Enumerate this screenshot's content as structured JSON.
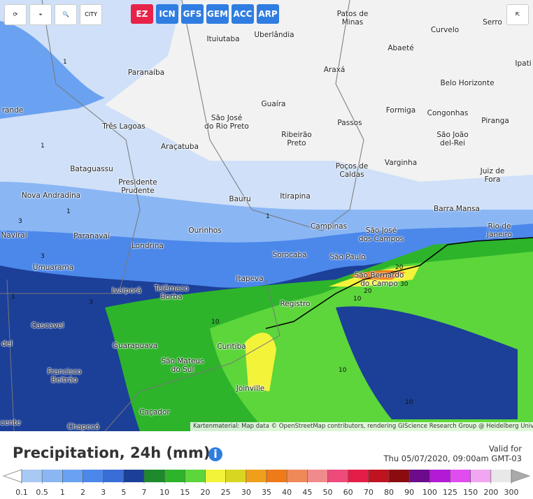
{
  "models": [
    "EZ",
    "ICN",
    "GFS",
    "GEM",
    "ACC",
    "ARP"
  ],
  "city_button": "CITY",
  "cities": [
    "Patos de\nMinas",
    "Curvelo",
    "Serro",
    "Ituiutaba",
    "Uberlândia",
    "Abaeté",
    "Paranaíba",
    "Araxá",
    "Belo Horizonte",
    "Ipati",
    "Guaíra",
    "Formiga",
    "Congonhas",
    "Piranga",
    "Três Lagoas",
    "São José\ndo Rio Preto",
    "Passos",
    "São João\ndel-Rei",
    "Araçatuba",
    "Ribeirão\nPreto",
    "Bataguassu",
    "Poços de\nCaldas",
    "Varginha",
    "Juiz de Fora",
    "Presidente\nPrudente",
    "Nova Andradina",
    "Bauru",
    "Itirapina",
    "Barra Mansa",
    "Paranavaí",
    "Ourinhos",
    "Campinas",
    "São José\ndos Campos",
    "Rio de Janeiro",
    "Naviraí",
    "Londrina",
    "Sorocaba",
    "São Paulo",
    "Umuarama",
    "Itapeva",
    "São Bernardo\ndo Campo",
    "Ivaiporã",
    "Telêmaco\nBorba",
    "Registro",
    "Cascavel",
    "Guarapuava",
    "Curitiba",
    "São Mateus\ndo Sul",
    "Francisco\nBeltrão",
    "Joinville",
    "Caçador",
    "Chapecó",
    "rande",
    "del",
    "cente"
  ],
  "contour_labels": [
    "1",
    "1",
    "1",
    "1",
    "1",
    "3",
    "3",
    "3",
    "10",
    "10",
    "10",
    "10",
    "20",
    "20",
    "30"
  ],
  "attribution": "Kartenmaterial: Map data © OpenStreetMap contributors, rendering GIScience Research Group @ Heidelberg University",
  "legend": {
    "title": "Precipitation, 24h (mm)",
    "valid_label": "Valid for",
    "valid_time": "Thu 05/07/2020, 09:00am GMT-03",
    "ticks": [
      0.1,
      0.5,
      1,
      2,
      3,
      5,
      7,
      10,
      15,
      20,
      25,
      30,
      35,
      40,
      45,
      50,
      60,
      70,
      80,
      90,
      100,
      125,
      150,
      200,
      300
    ],
    "colors": [
      "#a9c9f5",
      "#8ab6f4",
      "#6aa2f1",
      "#4c88ea",
      "#3a6dd6",
      "#1c3f98",
      "#1d8a2e",
      "#2db42b",
      "#5cd63b",
      "#f3f33a",
      "#d9d622",
      "#ef9f1c",
      "#ef7a1a",
      "#f0895a",
      "#f08b8b",
      "#ee4a7a",
      "#e41c48",
      "#bf1420",
      "#8a0c10",
      "#6c0c8c",
      "#b21ad6",
      "#e04cf0",
      "#f0a6f0",
      "#e8e8e8"
    ]
  }
}
